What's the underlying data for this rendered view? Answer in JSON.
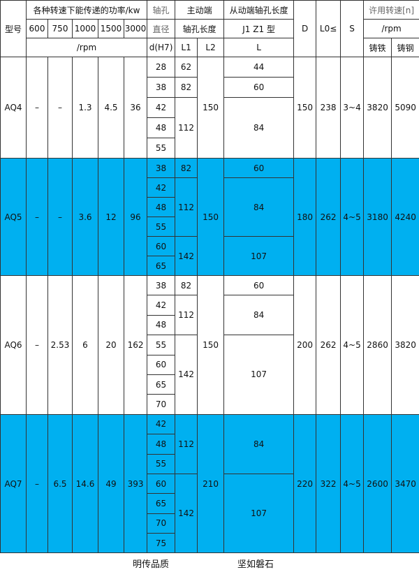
{
  "header": {
    "model": "型号",
    "power": "各种转速下能传递的功率/kw",
    "speeds": [
      "600",
      "750",
      "1000",
      "1500",
      "3000"
    ],
    "rpm": "/rpm",
    "bore1": "轴孔",
    "bore2": "直径",
    "bore3": "d(H7)",
    "drive1": "主动端",
    "drive2": "轴孔长度",
    "L1": "L1",
    "L2": "L2",
    "driven1": "从动端轴孔长度",
    "driven2": "J1 Z1 型",
    "L": "L",
    "D": "D",
    "L0": "L0≤",
    "S": "S",
    "allow1": "许用转速[n]",
    "allow2": "/rpm",
    "iron": "铸铁",
    "steel": "铸钢"
  },
  "rows": [
    {
      "model": "AQ4",
      "power": [
        "–",
        "–",
        "1.3",
        "4.5",
        "36"
      ],
      "d": [
        "28",
        "38",
        "42",
        "48",
        "55"
      ],
      "L1": [
        [
          "62",
          1
        ],
        [
          "82",
          1
        ],
        [
          "112",
          3
        ]
      ],
      "L2": "150",
      "L": [
        [
          "44",
          1
        ],
        [
          "60",
          1
        ],
        [
          "84",
          3
        ]
      ],
      "D": "150",
      "L0": "238",
      "S": "3~4",
      "iron": "3820",
      "steel": "5090",
      "blue": false
    },
    {
      "model": "AQ5",
      "power": [
        "–",
        "–",
        "3.6",
        "12",
        "96"
      ],
      "d": [
        "38",
        "42",
        "48",
        "55",
        "60",
        "65"
      ],
      "L1": [
        [
          "82",
          1
        ],
        [
          "112",
          3
        ],
        [
          "142",
          2
        ]
      ],
      "L2": "150",
      "L": [
        [
          "60",
          1
        ],
        [
          "84",
          3
        ],
        [
          "107",
          2
        ]
      ],
      "D": "180",
      "L0": "262",
      "S": "4~5",
      "iron": "3180",
      "steel": "4240",
      "blue": true
    },
    {
      "model": "AQ6",
      "power": [
        "–",
        "2.53",
        "6",
        "20",
        "162"
      ],
      "d": [
        "38",
        "42",
        "48",
        "55",
        "60",
        "65",
        "70"
      ],
      "L1": [
        [
          "82",
          1
        ],
        [
          "112",
          2
        ],
        [
          "142",
          4
        ]
      ],
      "L2": "150",
      "L": [
        [
          "60",
          1
        ],
        [
          "84",
          2
        ],
        [
          "107",
          4
        ]
      ],
      "D": "200",
      "L0": "262",
      "S": "4~5",
      "iron": "2860",
      "steel": "3820",
      "blue": false
    },
    {
      "model": "AQ7",
      "power": [
        "–",
        "6.5",
        "14.6",
        "49",
        "393"
      ],
      "d": [
        "42",
        "48",
        "55",
        "60",
        "65",
        "70",
        "75"
      ],
      "L1": [
        [
          "112",
          3
        ],
        [
          "142",
          4
        ]
      ],
      "L2": "210",
      "L": [
        [
          "84",
          3
        ],
        [
          "107",
          4
        ]
      ],
      "D": "220",
      "L0": "322",
      "S": "4~5",
      "iron": "2600",
      "steel": "3470",
      "blue": true
    }
  ],
  "footer": {
    "left": "明传品质",
    "right": "坚如磐石"
  },
  "colors": {
    "blue": "#00b0f0"
  }
}
